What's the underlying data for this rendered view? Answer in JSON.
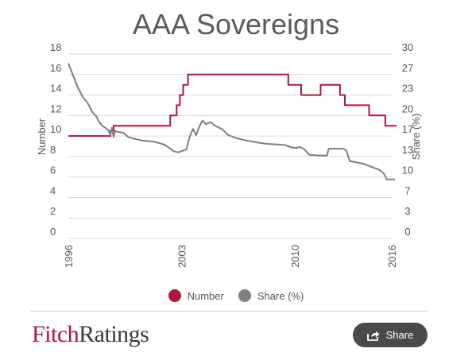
{
  "chart_data": {
    "type": "line",
    "title": "AAA Sovereigns",
    "ylabel_left": "Number",
    "ylabel_right": "Share (%)",
    "xlim": [
      1996,
      2016
    ],
    "x_ticks": [
      "1996",
      "2003",
      "2010",
      "2016"
    ],
    "ylim_left": [
      0,
      18
    ],
    "y_ticks_left": [
      "0",
      "2",
      "4",
      "6",
      "8",
      "10",
      "12",
      "14",
      "16",
      "18"
    ],
    "ylim_right": [
      0,
      30
    ],
    "y_ticks_right": [
      "0",
      "3",
      "7",
      "10",
      "13",
      "17",
      "20",
      "23",
      "27",
      "30"
    ],
    "grid": true,
    "legend_position": "bottom",
    "series": [
      {
        "name": "Number",
        "axis": "left",
        "color": "#b0163a",
        "points": [
          [
            1996.0,
            10
          ],
          [
            1998.6,
            10
          ],
          [
            1998.6,
            10.5
          ],
          [
            1998.8,
            10.5
          ],
          [
            1998.8,
            11
          ],
          [
            2002.3,
            11
          ],
          [
            2002.3,
            12
          ],
          [
            2002.7,
            12
          ],
          [
            2002.7,
            13
          ],
          [
            2002.9,
            13
          ],
          [
            2002.9,
            14
          ],
          [
            2003.1,
            14
          ],
          [
            2003.1,
            15
          ],
          [
            2003.4,
            15
          ],
          [
            2003.4,
            16
          ],
          [
            2009.6,
            16
          ],
          [
            2009.6,
            15
          ],
          [
            2010.4,
            15
          ],
          [
            2010.4,
            14
          ],
          [
            2011.6,
            14
          ],
          [
            2011.6,
            15
          ],
          [
            2012.8,
            15
          ],
          [
            2012.8,
            14
          ],
          [
            2013.1,
            14
          ],
          [
            2013.1,
            13
          ],
          [
            2014.6,
            13
          ],
          [
            2014.6,
            12
          ],
          [
            2015.6,
            12
          ],
          [
            2015.6,
            11
          ],
          [
            2016.3,
            11
          ]
        ]
      },
      {
        "name": "Share (%)",
        "axis": "right",
        "color": "#7f7f7f",
        "points": [
          [
            1996.0,
            28.5
          ],
          [
            1996.3,
            26.5
          ],
          [
            1996.6,
            24.5
          ],
          [
            1996.9,
            23
          ],
          [
            1997.2,
            22
          ],
          [
            1997.5,
            20.5
          ],
          [
            1997.7,
            20
          ],
          [
            1997.9,
            19
          ],
          [
            1998.1,
            18.3
          ],
          [
            1998.3,
            18
          ],
          [
            1998.5,
            17.5
          ],
          [
            1998.6,
            16.8
          ],
          [
            1998.7,
            18
          ],
          [
            1998.8,
            16.5
          ],
          [
            1998.9,
            17.5
          ],
          [
            1999.1,
            17.3
          ],
          [
            1999.4,
            17.2
          ],
          [
            1999.7,
            16.5
          ],
          [
            2000.1,
            16.2
          ],
          [
            2000.6,
            15.9
          ],
          [
            2001.1,
            15.8
          ],
          [
            2001.5,
            15.6
          ],
          [
            2001.9,
            15.3
          ],
          [
            2002.2,
            14.8
          ],
          [
            2002.5,
            14.2
          ],
          [
            2002.8,
            14.0
          ],
          [
            2003.1,
            14.3
          ],
          [
            2003.3,
            14.5
          ],
          [
            2003.5,
            16.5
          ],
          [
            2003.7,
            17.8
          ],
          [
            2003.9,
            16.8
          ],
          [
            2004.1,
            18.2
          ],
          [
            2004.3,
            19.2
          ],
          [
            2004.5,
            18.6
          ],
          [
            2004.8,
            18.9
          ],
          [
            2005.1,
            18.3
          ],
          [
            2005.5,
            17.8
          ],
          [
            2005.9,
            16.8
          ],
          [
            2006.4,
            16.3
          ],
          [
            2006.9,
            16.0
          ],
          [
            2007.5,
            15.7
          ],
          [
            2008.2,
            15.4
          ],
          [
            2008.9,
            15.3
          ],
          [
            2009.4,
            15.2
          ],
          [
            2009.8,
            14.8
          ],
          [
            2010.1,
            14.7
          ],
          [
            2010.3,
            14.9
          ],
          [
            2010.6,
            14.5
          ],
          [
            2010.9,
            13.6
          ],
          [
            2011.5,
            13.5
          ],
          [
            2012.0,
            13.5
          ],
          [
            2012.1,
            14.6
          ],
          [
            2013.0,
            14.6
          ],
          [
            2013.2,
            14.3
          ],
          [
            2013.4,
            12.6
          ],
          [
            2013.8,
            12.4
          ],
          [
            2014.3,
            12.1
          ],
          [
            2014.8,
            11.6
          ],
          [
            2015.2,
            11.2
          ],
          [
            2015.5,
            10.6
          ],
          [
            2015.7,
            9.6
          ],
          [
            2016.2,
            9.6
          ]
        ]
      }
    ]
  },
  "legend": {
    "number_label": "Number",
    "share_label": "Share (%)"
  },
  "footer": {
    "logo_fitch": "Fitch",
    "logo_ratings": "Ratings",
    "share_label": "Share"
  }
}
